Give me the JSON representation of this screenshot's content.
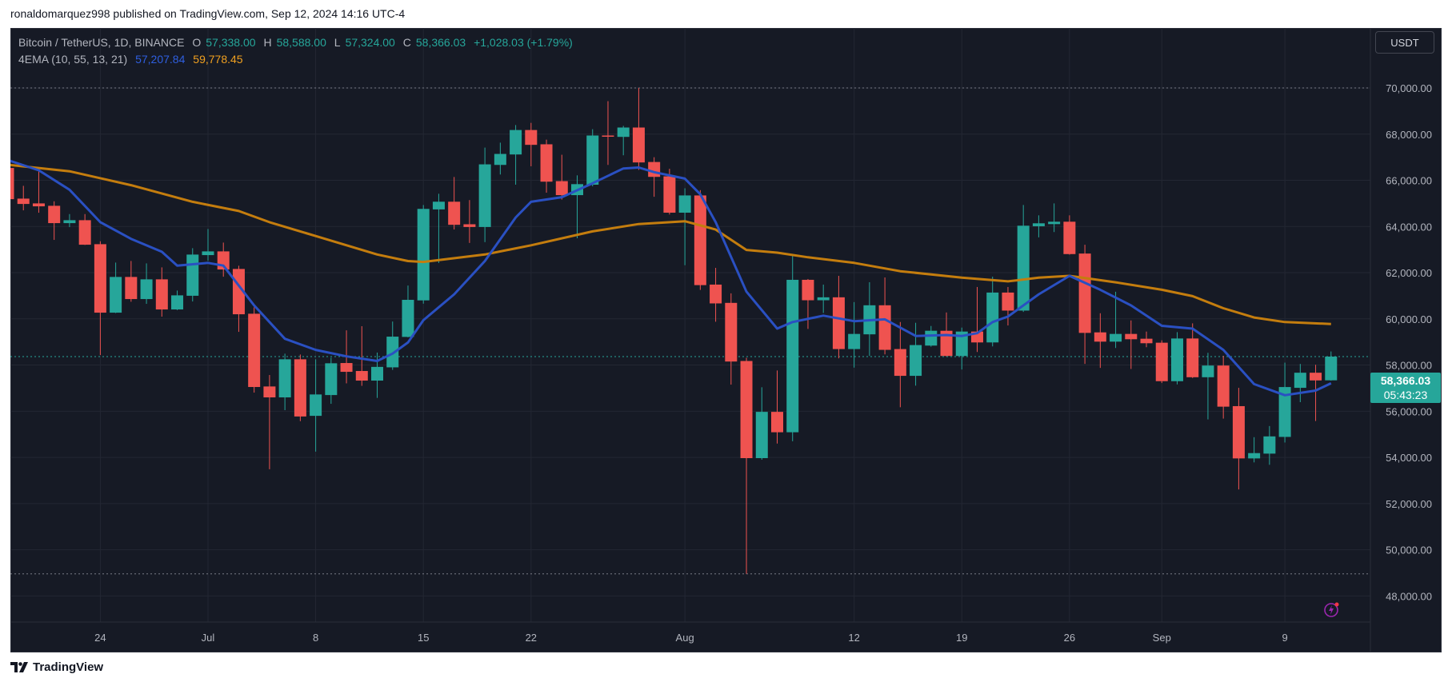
{
  "header": {
    "published": "ronaldomarquez998 published on TradingView.com, Sep 12, 2024 14:16 UTC-4"
  },
  "legend": {
    "symbol": "Bitcoin / TetherUS, 1D, BINANCE",
    "o_label": "O",
    "o": "57,338.00",
    "h_label": "H",
    "h": "58,588.00",
    "l_label": "L",
    "l": "57,324.00",
    "c_label": "C",
    "c": "58,366.03",
    "change": "+1,028.03 (+1.79%)",
    "indicator": "4EMA (10, 55, 13, 21)",
    "ema1": "57,207.84",
    "ema2": "59,778.45"
  },
  "currency_button": "USDT",
  "last_price": {
    "value": "58,366.03",
    "countdown": "05:43:23"
  },
  "footer": {
    "brand": "TradingView"
  },
  "colors": {
    "up": "#26a69a",
    "down": "#ef5350",
    "ema_fast": "#2a50c2",
    "ema_slow": "#c47d0e",
    "bg": "#161a25",
    "grid": "#232733"
  },
  "chart_data": {
    "type": "candlestick",
    "title": "Bitcoin / TetherUS, 1D, BINANCE",
    "ylim": [
      47000,
      71200
    ],
    "yticks": [
      48000,
      50000,
      52000,
      54000,
      56000,
      58000,
      60000,
      62000,
      64000,
      66000,
      68000,
      70000
    ],
    "ytick_labels": [
      "48,000.00",
      "50,000.00",
      "52,000.00",
      "54,000.00",
      "56,000.00",
      "58,000.00",
      "60,000.00",
      "62,000.00",
      "64,000.00",
      "66,000.00",
      "68,000.00",
      "70,000.00"
    ],
    "xticks": [
      {
        "date": "2024-06-24",
        "label": "24"
      },
      {
        "date": "2024-07-01",
        "label": "Jul"
      },
      {
        "date": "2024-07-08",
        "label": "8"
      },
      {
        "date": "2024-07-15",
        "label": "15"
      },
      {
        "date": "2024-07-22",
        "label": "22"
      },
      {
        "date": "2024-08-01",
        "label": "Aug"
      },
      {
        "date": "2024-08-12",
        "label": "12"
      },
      {
        "date": "2024-08-19",
        "label": "19"
      },
      {
        "date": "2024-08-26",
        "label": "26"
      },
      {
        "date": "2024-09-01",
        "label": "Sep"
      },
      {
        "date": "2024-09-09",
        "label": "9"
      }
    ],
    "x_start": "2024-06-18",
    "range_high": 70000,
    "range_low": 48958,
    "columns": [
      "date",
      "open",
      "high",
      "low",
      "close"
    ],
    "candles": [
      [
        "2024-06-18",
        66534,
        66650,
        65100,
        65184
      ],
      [
        "2024-06-19",
        65207,
        65761,
        64700,
        64976
      ],
      [
        "2024-06-20",
        65000,
        66477,
        64596,
        64873
      ],
      [
        "2024-06-21",
        64896,
        65092,
        63419,
        64146
      ],
      [
        "2024-06-22",
        64146,
        64538,
        63973,
        64273
      ],
      [
        "2024-06-23",
        64273,
        64538,
        63200,
        63211
      ],
      [
        "2024-06-24",
        63234,
        63361,
        58433,
        60268
      ],
      [
        "2024-06-25",
        60268,
        62438,
        60250,
        61815
      ],
      [
        "2024-06-26",
        61815,
        62507,
        60741,
        60857
      ],
      [
        "2024-06-27",
        60857,
        62403,
        60650,
        61711
      ],
      [
        "2024-06-28",
        61711,
        62230,
        60095,
        60407
      ],
      [
        "2024-06-29",
        60407,
        61226,
        60380,
        61018
      ],
      [
        "2024-06-30",
        61000,
        63061,
        60753,
        62784
      ],
      [
        "2024-07-01",
        62761,
        63892,
        62519,
        62922
      ],
      [
        "2024-07-02",
        62922,
        63303,
        61826,
        62138
      ],
      [
        "2024-07-03",
        62161,
        62300,
        59437,
        60199
      ],
      [
        "2024-07-04",
        60222,
        60499,
        56806,
        57049
      ],
      [
        "2024-07-05",
        57072,
        57568,
        53487,
        56599
      ],
      [
        "2024-07-06",
        56599,
        58491,
        56045,
        58249
      ],
      [
        "2024-07-07",
        58249,
        58456,
        55570,
        55772
      ],
      [
        "2024-07-08",
        55800,
        58249,
        54250,
        56726
      ],
      [
        "2024-07-09",
        56700,
        58318,
        56321,
        58076
      ],
      [
        "2024-07-10",
        58087,
        59503,
        57207,
        57706
      ],
      [
        "2024-07-11",
        57742,
        59682,
        57100,
        57326
      ],
      [
        "2024-07-12",
        57326,
        58540,
        56576,
        57921
      ],
      [
        "2024-07-13",
        57900,
        59884,
        57790,
        59230
      ],
      [
        "2024-07-14",
        59218,
        61443,
        59200,
        60824
      ],
      [
        "2024-07-15",
        60800,
        64930,
        60658,
        64763
      ],
      [
        "2024-07-16",
        64740,
        65418,
        62419,
        65073
      ],
      [
        "2024-07-17",
        65073,
        66144,
        63871,
        64073
      ],
      [
        "2024-07-18",
        64097,
        65144,
        63288,
        63978
      ],
      [
        "2024-07-19",
        63978,
        67417,
        63323,
        66691
      ],
      [
        "2024-07-20",
        66667,
        67631,
        66251,
        67143
      ],
      [
        "2024-07-21",
        67119,
        68393,
        65810,
        68178
      ],
      [
        "2024-07-22",
        68178,
        68488,
        66608,
        67536
      ],
      [
        "2024-07-23",
        67560,
        67762,
        65465,
        65941
      ],
      [
        "2024-07-24",
        65965,
        67108,
        65168,
        65358
      ],
      [
        "2024-07-25",
        65358,
        66215,
        63490,
        65834
      ],
      [
        "2024-07-26",
        65810,
        68214,
        65739,
        67940
      ],
      [
        "2024-07-27",
        67940,
        69428,
        66667,
        67917
      ],
      [
        "2024-07-28",
        67881,
        68357,
        67084,
        68286
      ],
      [
        "2024-07-29",
        68286,
        70000,
        66453,
        66774
      ],
      [
        "2024-07-30",
        66793,
        67000,
        65288,
        66149
      ],
      [
        "2024-07-31",
        66172,
        66500,
        64518,
        64598
      ],
      [
        "2024-08-01",
        64598,
        65655,
        62323,
        65345
      ],
      [
        "2024-08-02",
        65345,
        65575,
        61254,
        61461
      ],
      [
        "2024-08-03",
        61484,
        62208,
        59876,
        60669
      ],
      [
        "2024-08-04",
        60692,
        61105,
        57152,
        58152
      ],
      [
        "2024-08-05",
        58175,
        58313,
        48958,
        53968
      ],
      [
        "2024-08-06",
        53968,
        57038,
        53900,
        55972
      ],
      [
        "2024-08-07",
        55972,
        57762,
        54600,
        55089
      ],
      [
        "2024-08-08",
        55089,
        62725,
        54700,
        61691
      ],
      [
        "2024-08-09",
        61691,
        61726,
        59565,
        60806
      ],
      [
        "2024-08-10",
        60806,
        61484,
        60255,
        60933
      ],
      [
        "2024-08-11",
        60933,
        61863,
        58290,
        58692
      ],
      [
        "2024-08-12",
        58692,
        60726,
        57888,
        59347
      ],
      [
        "2024-08-13",
        59330,
        61587,
        58394,
        60588
      ],
      [
        "2024-08-14",
        60588,
        61794,
        58462,
        58658
      ],
      [
        "2024-08-15",
        58692,
        59864,
        56172,
        57532
      ],
      [
        "2024-08-16",
        57532,
        59830,
        57107,
        58865
      ],
      [
        "2024-08-17",
        58842,
        59692,
        58796,
        59485
      ],
      [
        "2024-08-18",
        59484,
        60277,
        58380,
        58393
      ],
      [
        "2024-08-19",
        58393,
        59622,
        57807,
        59450
      ],
      [
        "2024-08-20",
        59450,
        61380,
        58565,
        58979
      ],
      [
        "2024-08-21",
        58979,
        61828,
        58807,
        61139
      ],
      [
        "2024-08-22",
        61139,
        61380,
        59714,
        60358
      ],
      [
        "2024-08-23",
        60358,
        64931,
        60300,
        64034
      ],
      [
        "2024-08-24",
        64011,
        64483,
        63529,
        64138
      ],
      [
        "2024-08-25",
        64103,
        65000,
        63759,
        64207
      ],
      [
        "2024-08-26",
        64207,
        64483,
        62780,
        62805
      ],
      [
        "2024-08-27",
        62828,
        63207,
        58048,
        59392
      ],
      [
        "2024-08-28",
        59415,
        60243,
        57876,
        59013
      ],
      [
        "2024-08-29",
        59013,
        61174,
        58738,
        59347
      ],
      [
        "2024-08-30",
        59347,
        59933,
        57830,
        59117
      ],
      [
        "2024-08-31",
        59140,
        59450,
        58772,
        58944
      ],
      [
        "2024-09-01",
        58967,
        59071,
        57221,
        57301
      ],
      [
        "2024-09-02",
        57300,
        59425,
        57162,
        59150
      ],
      [
        "2024-09-03",
        59150,
        59805,
        57438,
        57472
      ],
      [
        "2024-09-04",
        57472,
        58529,
        55645,
        57978
      ],
      [
        "2024-09-05",
        57978,
        58400,
        55680,
        56197
      ],
      [
        "2024-09-06",
        56220,
        57013,
        52612,
        53956
      ],
      [
        "2024-09-07",
        53956,
        54876,
        53784,
        54186
      ],
      [
        "2024-09-08",
        54163,
        55358,
        53680,
        54910
      ],
      [
        "2024-09-09",
        54887,
        58104,
        54645,
        57047
      ],
      [
        "2024-09-10",
        57013,
        58047,
        56392,
        57667
      ],
      [
        "2024-09-11",
        57667,
        58012,
        55576,
        57334
      ],
      [
        "2024-09-12",
        57338,
        58588,
        57324,
        58366.03
      ]
    ],
    "ema_fast": {
      "name": "EMA 10",
      "points": [
        [
          "2024-06-18",
          66874
        ],
        [
          "2024-06-20",
          66433
        ],
        [
          "2024-06-22",
          65591
        ],
        [
          "2024-06-24",
          64188
        ],
        [
          "2024-06-26",
          63467
        ],
        [
          "2024-06-28",
          62906
        ],
        [
          "2024-06-29",
          62305
        ],
        [
          "2024-07-01",
          62425
        ],
        [
          "2024-07-02",
          62305
        ],
        [
          "2024-07-04",
          60581
        ],
        [
          "2024-07-06",
          59138
        ],
        [
          "2024-07-08",
          58657
        ],
        [
          "2024-07-10",
          58377
        ],
        [
          "2024-07-12",
          58176
        ],
        [
          "2024-07-13",
          58497
        ],
        [
          "2024-07-14",
          58978
        ],
        [
          "2024-07-15",
          59940
        ],
        [
          "2024-07-17",
          61062
        ],
        [
          "2024-07-19",
          62505
        ],
        [
          "2024-07-21",
          64389
        ],
        [
          "2024-07-22",
          65070
        ],
        [
          "2024-07-24",
          65270
        ],
        [
          "2024-07-26",
          65872
        ],
        [
          "2024-07-28",
          66513
        ],
        [
          "2024-07-29",
          66553
        ],
        [
          "2024-07-30",
          66353
        ],
        [
          "2024-08-01",
          66072
        ],
        [
          "2024-08-02",
          65391
        ],
        [
          "2024-08-03",
          64188
        ],
        [
          "2024-08-05",
          61182
        ],
        [
          "2024-08-07",
          59579
        ],
        [
          "2024-08-08",
          59860
        ],
        [
          "2024-08-10",
          60140
        ],
        [
          "2024-08-12",
          59900
        ],
        [
          "2024-08-14",
          59980
        ],
        [
          "2024-08-16",
          59259
        ],
        [
          "2024-08-18",
          59299
        ],
        [
          "2024-08-19",
          59259
        ],
        [
          "2024-08-20",
          59379
        ],
        [
          "2024-08-21",
          59860
        ],
        [
          "2024-08-22",
          60100
        ],
        [
          "2024-08-24",
          61062
        ],
        [
          "2024-08-26",
          61864
        ],
        [
          "2024-08-28",
          61262
        ],
        [
          "2024-08-30",
          60581
        ],
        [
          "2024-09-01",
          59700
        ],
        [
          "2024-09-03",
          59579
        ],
        [
          "2024-09-05",
          58657
        ],
        [
          "2024-09-07",
          57174
        ],
        [
          "2024-09-09",
          56693
        ],
        [
          "2024-09-11",
          56894
        ],
        [
          "2024-09-12",
          57207.84
        ]
      ]
    },
    "ema_slow": {
      "name": "EMA 55",
      "points": [
        [
          "2024-06-18",
          66673
        ],
        [
          "2024-06-22",
          66393
        ],
        [
          "2024-06-26",
          65791
        ],
        [
          "2024-06-30",
          65070
        ],
        [
          "2024-07-03",
          64670
        ],
        [
          "2024-07-05",
          64188
        ],
        [
          "2024-07-08",
          63587
        ],
        [
          "2024-07-12",
          62786
        ],
        [
          "2024-07-14",
          62505
        ],
        [
          "2024-07-15",
          62465
        ],
        [
          "2024-07-19",
          62786
        ],
        [
          "2024-07-22",
          63186
        ],
        [
          "2024-07-26",
          63787
        ],
        [
          "2024-07-29",
          64108
        ],
        [
          "2024-08-01",
          64228
        ],
        [
          "2024-08-03",
          63868
        ],
        [
          "2024-08-05",
          62986
        ],
        [
          "2024-08-07",
          62866
        ],
        [
          "2024-08-09",
          62665
        ],
        [
          "2024-08-12",
          62425
        ],
        [
          "2024-08-15",
          62064
        ],
        [
          "2024-08-19",
          61784
        ],
        [
          "2024-08-22",
          61624
        ],
        [
          "2024-08-24",
          61784
        ],
        [
          "2024-08-26",
          61864
        ],
        [
          "2024-08-29",
          61583
        ],
        [
          "2024-09-01",
          61262
        ],
        [
          "2024-09-03",
          60982
        ],
        [
          "2024-09-05",
          60460
        ],
        [
          "2024-09-07",
          60060
        ],
        [
          "2024-09-09",
          59860
        ],
        [
          "2024-09-12",
          59778.45
        ]
      ]
    }
  }
}
